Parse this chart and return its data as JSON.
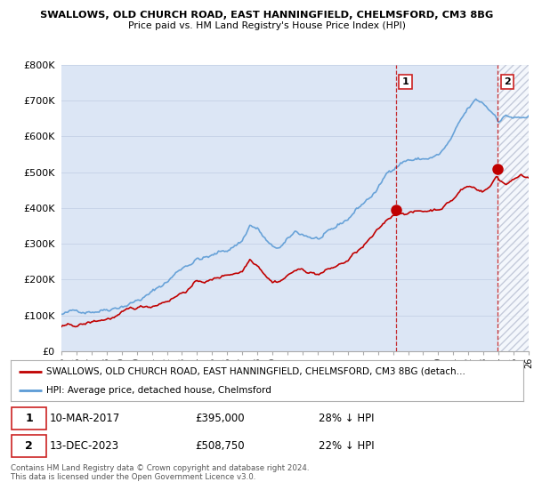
{
  "title1": "SWALLOWS, OLD CHURCH ROAD, EAST HANNINGFIELD, CHELMSFORD, CM3 8BG",
  "title2": "Price paid vs. HM Land Registry's House Price Index (HPI)",
  "ylim": [
    0,
    800000
  ],
  "yticks": [
    0,
    100000,
    200000,
    300000,
    400000,
    500000,
    600000,
    700000,
    800000
  ],
  "ytick_labels": [
    "£0",
    "£100K",
    "£200K",
    "£300K",
    "£400K",
    "£500K",
    "£600K",
    "£700K",
    "£800K"
  ],
  "hpi_color": "#5b9bd5",
  "price_color": "#c00000",
  "marker_color": "#c00000",
  "grid_color": "#c8d4e8",
  "bg_color": "#ffffff",
  "plot_bg_color": "#dce6f5",
  "hatch_color": "#b0b8cc",
  "marker1_x": 2017.19,
  "marker1_y": 395000,
  "marker2_x": 2023.95,
  "marker2_y": 508750,
  "xmin": 1995.0,
  "xmax": 2026.0,
  "legend_label1": "SWALLOWS, OLD CHURCH ROAD, EAST HANNINGFIELD, CHELMSFORD, CM3 8BG (detach…",
  "legend_label2": "HPI: Average price, detached house, Chelmsford",
  "note1_date": "10-MAR-2017",
  "note1_price": "£395,000",
  "note1_hpi": "28% ↓ HPI",
  "note2_date": "13-DEC-2023",
  "note2_price": "£508,750",
  "note2_hpi": "22% ↓ HPI",
  "footer": "Contains HM Land Registry data © Crown copyright and database right 2024.\nThis data is licensed under the Open Government Licence v3.0."
}
